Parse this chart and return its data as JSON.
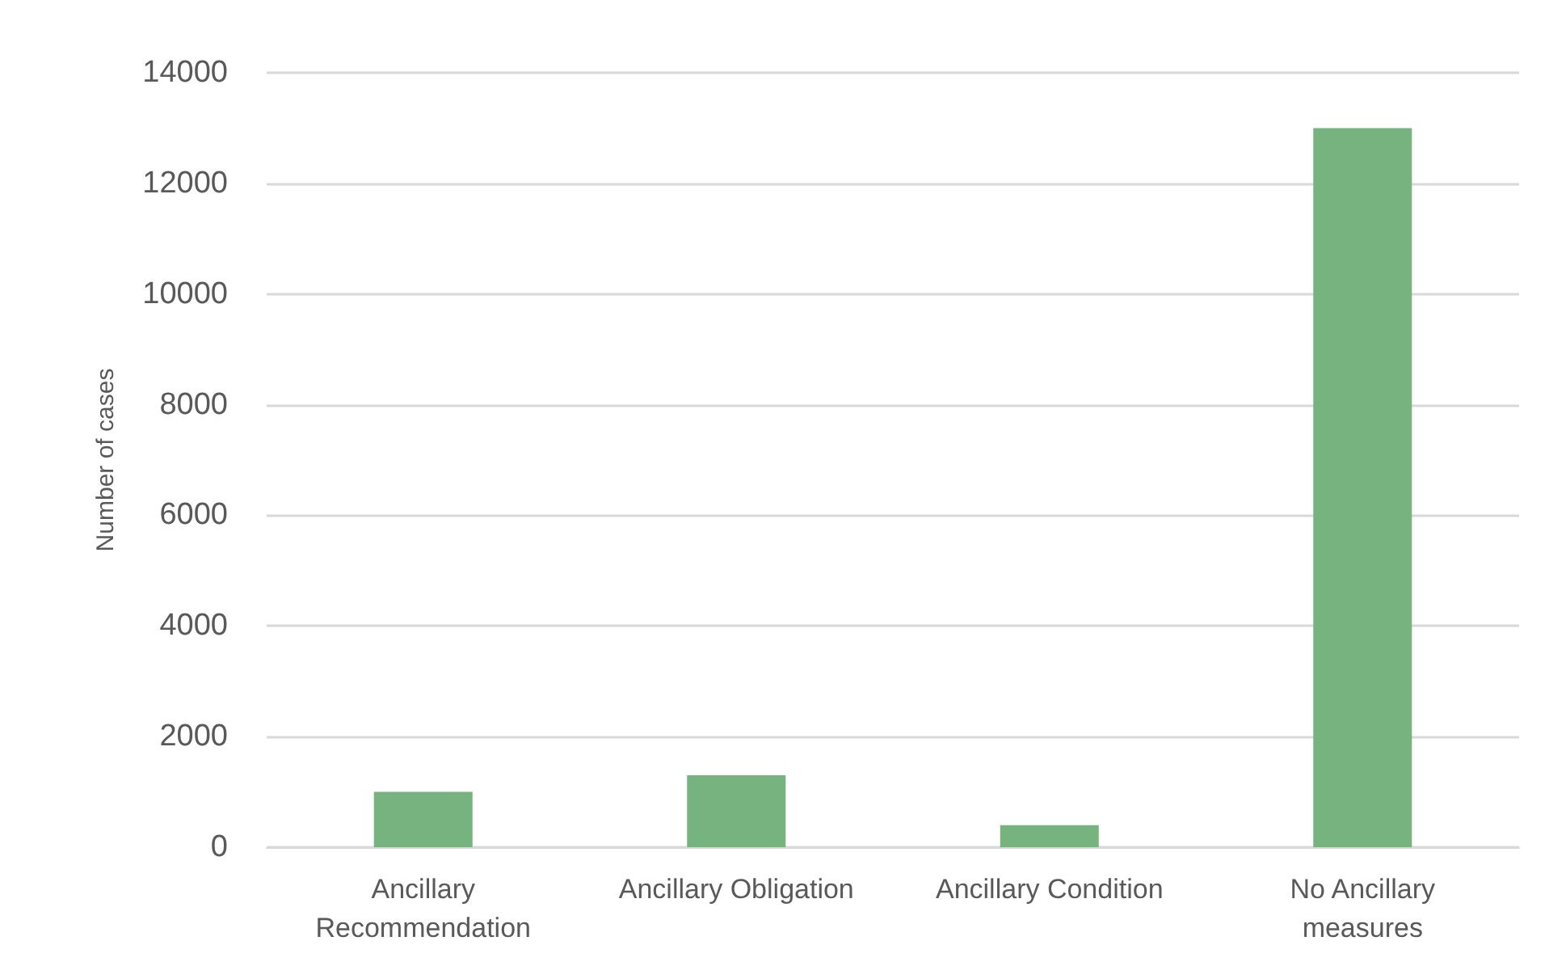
{
  "chart_data": {
    "type": "bar",
    "ylabel": "Number of cases",
    "categories": [
      "Ancillary\nRecommendation",
      "Ancillary Obligation",
      "Ancillary Condition",
      "No Ancillary\nmeasures"
    ],
    "values": [
      1000,
      1300,
      400,
      13000
    ],
    "color": "#77b37e",
    "ylim": [
      0,
      14000
    ],
    "yticks": [
      0,
      2000,
      4000,
      6000,
      8000,
      10000,
      12000,
      14000
    ],
    "grid": "y"
  }
}
